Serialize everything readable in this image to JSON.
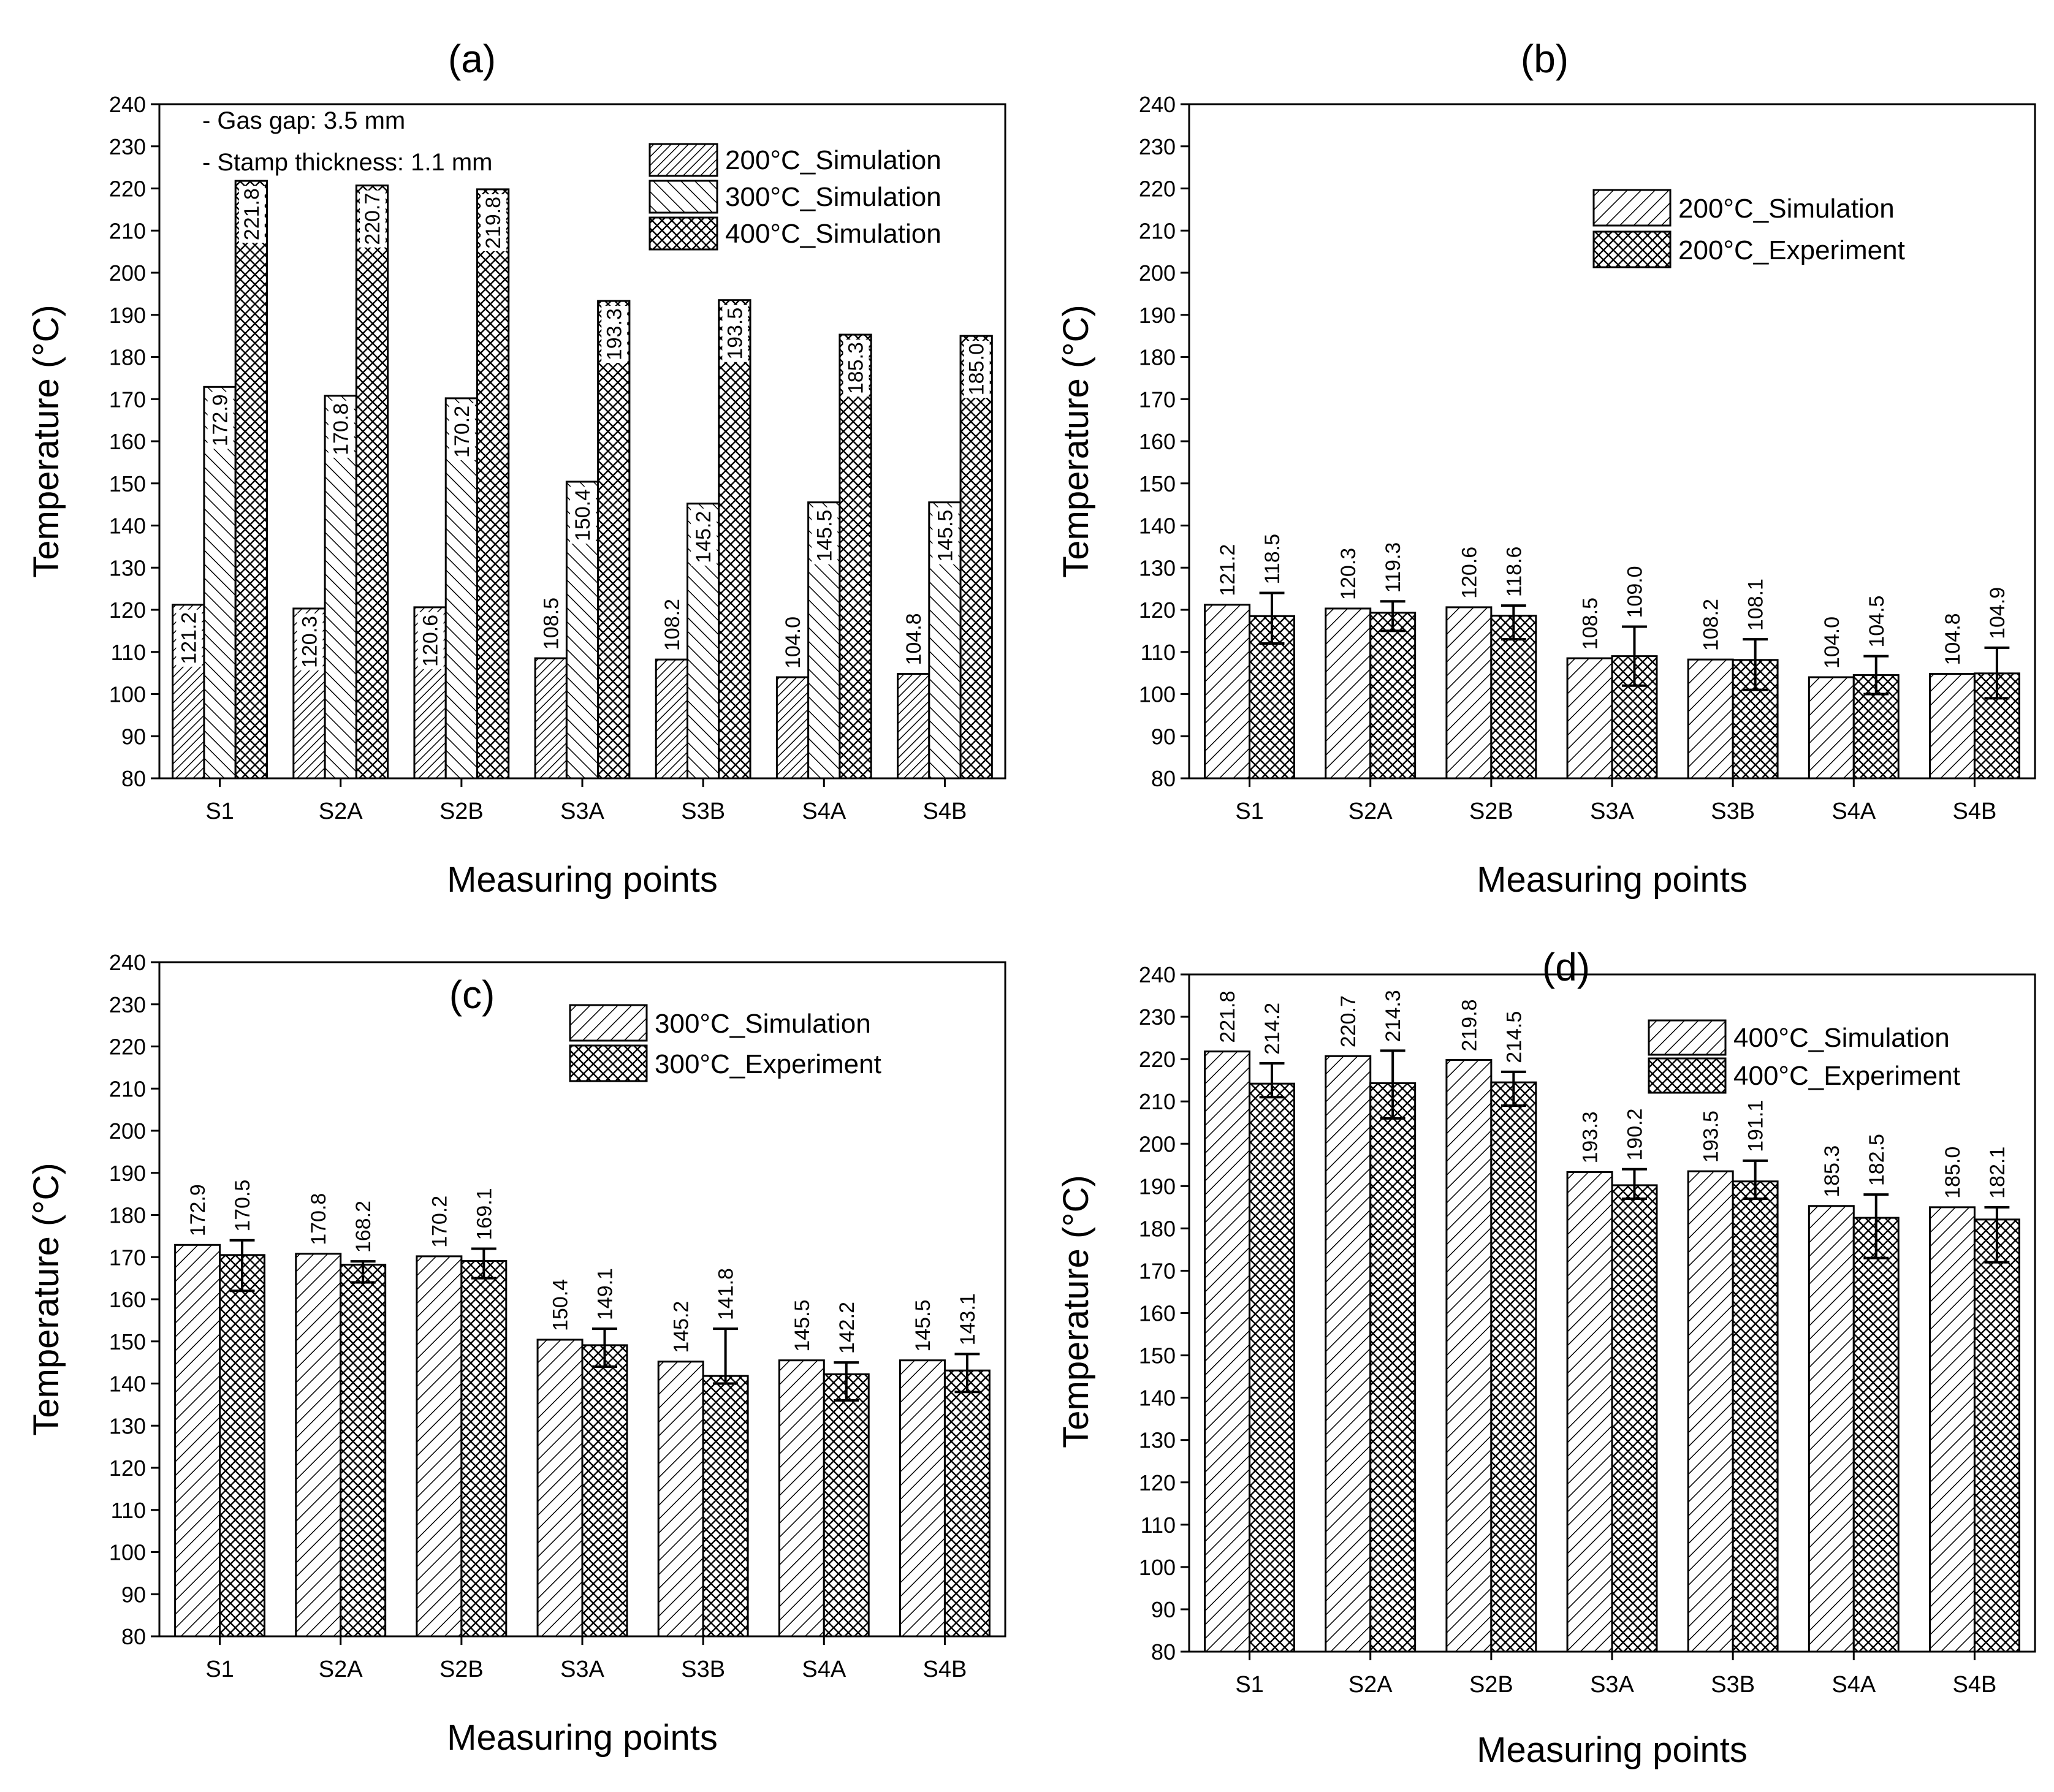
{
  "figure": {
    "colors": {
      "ink": "#000000",
      "background": "#ffffff"
    },
    "categories": [
      "S1",
      "S2A",
      "S2B",
      "S3A",
      "S3B",
      "S4A",
      "S4B"
    ]
  },
  "chart_data": [
    {
      "type": "bar",
      "panel": "(a)",
      "xlabel": "Measuring points",
      "ylabel": "Temperature (°C)",
      "ylim": [
        80,
        240
      ],
      "ytick_step": 10,
      "categories": [
        "S1",
        "S2A",
        "S2B",
        "S3A",
        "S3B",
        "S4A",
        "S4B"
      ],
      "annotations": [
        "- Gas gap: 3.5 mm",
        "- Stamp thickness: 1.1 mm"
      ],
      "legend_position": "top-right",
      "label_style": "vertical",
      "series": [
        {
          "name": "200°C_Simulation",
          "pattern": "hatch-dense",
          "values": [
            121.2,
            120.3,
            120.6,
            108.5,
            108.2,
            104.0,
            104.8
          ],
          "labels": [
            "121.2",
            "120.3",
            "120.6",
            "108.5",
            "108.2",
            "104.0",
            "104.8"
          ]
        },
        {
          "name": "300°C_Simulation",
          "pattern": "hatch-back",
          "values": [
            172.9,
            170.8,
            170.2,
            150.4,
            145.2,
            145.5,
            145.5
          ],
          "labels": [
            "172.9",
            "170.8",
            "170.2",
            "150.4",
            "145.2",
            "145.5",
            "145.5"
          ]
        },
        {
          "name": "400°C_Simulation",
          "pattern": "crosshatch",
          "values": [
            221.8,
            220.7,
            219.8,
            193.3,
            193.5,
            185.3,
            185.0
          ],
          "labels": [
            "221.8",
            "220.7",
            "219.8",
            "193.3",
            "193.5",
            "185.3",
            "185.0"
          ]
        }
      ]
    },
    {
      "type": "bar",
      "panel": "(b)",
      "xlabel": "Measuring points",
      "ylabel": "Temperature (°C)",
      "ylim": [
        80,
        240
      ],
      "ytick_step": 10,
      "categories": [
        "S1",
        "S2A",
        "S2B",
        "S3A",
        "S3B",
        "S4A",
        "S4B"
      ],
      "legend_position": "top-right",
      "series": [
        {
          "name": "200°C_Simulation",
          "pattern": "hatch",
          "values": [
            121.2,
            120.3,
            120.6,
            108.5,
            108.2,
            104.0,
            104.8
          ],
          "labels": [
            "121.2",
            "120.3",
            "120.6",
            "108.5",
            "108.2",
            "104.0",
            "104.8"
          ]
        },
        {
          "name": "200°C_Experiment",
          "pattern": "crosshatch",
          "values": [
            118.5,
            119.3,
            118.6,
            109.0,
            108.1,
            104.5,
            104.9
          ],
          "labels": [
            "118.5",
            "119.3",
            "118.6",
            "109.0",
            "108.1",
            "104.5",
            "104.9"
          ],
          "error_low": [
            112,
            115,
            113,
            102,
            101,
            100,
            99
          ],
          "error_high": [
            124,
            122,
            121,
            116,
            113,
            109,
            111
          ]
        }
      ]
    },
    {
      "type": "bar",
      "panel": "(c)",
      "xlabel": "Measuring points",
      "ylabel": "Temperature (°C)",
      "ylim": [
        80,
        240
      ],
      "ytick_step": 10,
      "categories": [
        "S1",
        "S2A",
        "S2B",
        "S3A",
        "S3B",
        "S4A",
        "S4B"
      ],
      "legend_position": "top-right",
      "series": [
        {
          "name": "300°C_Simulation",
          "pattern": "hatch",
          "values": [
            172.9,
            170.8,
            170.2,
            150.4,
            145.2,
            145.5,
            145.5
          ],
          "labels": [
            "172.9",
            "170.8",
            "170.2",
            "150.4",
            "145.2",
            "145.5",
            "145.5"
          ]
        },
        {
          "name": "300°C_Experiment",
          "pattern": "crosshatch",
          "values": [
            170.5,
            168.2,
            169.1,
            149.1,
            141.8,
            142.2,
            143.1
          ],
          "labels": [
            "170.5",
            "168.2",
            "169.1",
            "149.1",
            "141.8",
            "142.2",
            "143.1"
          ],
          "error_low": [
            162,
            164,
            165,
            144,
            140,
            136,
            138
          ],
          "error_high": [
            174,
            169,
            172,
            153,
            153,
            145,
            147
          ]
        }
      ]
    },
    {
      "type": "bar",
      "panel": "(d)",
      "xlabel": "Measuring points",
      "ylabel": "Temperature (°C)",
      "ylim": [
        80,
        240
      ],
      "ytick_step": 10,
      "categories": [
        "S1",
        "S2A",
        "S2B",
        "S3A",
        "S3B",
        "S4A",
        "S4B"
      ],
      "legend_position": "top-right",
      "series": [
        {
          "name": "400°C_Simulation",
          "pattern": "hatch",
          "values": [
            221.8,
            220.7,
            219.8,
            193.3,
            193.5,
            185.3,
            185.0
          ],
          "labels": [
            "221.8",
            "220.7",
            "219.8",
            "193.3",
            "193.5",
            "185.3",
            "185.0"
          ]
        },
        {
          "name": "400°C_Experiment",
          "pattern": "crosshatch",
          "values": [
            214.2,
            214.3,
            214.5,
            190.2,
            191.1,
            182.5,
            182.1
          ],
          "labels": [
            "214.2",
            "214.3",
            "214.5",
            "190.2",
            "191.1",
            "182.5",
            "182.1"
          ],
          "error_low": [
            211,
            206,
            209,
            187,
            187,
            173,
            172
          ],
          "error_high": [
            219,
            222,
            217,
            194,
            196,
            188,
            185
          ]
        }
      ]
    }
  ]
}
